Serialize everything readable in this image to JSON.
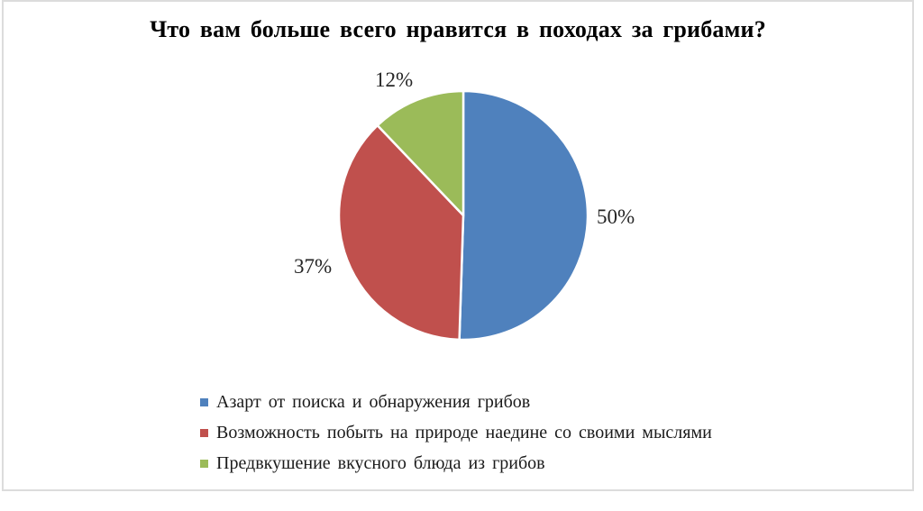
{
  "page": {
    "background_color": "#FFFFFF",
    "frame_border_color": "#DCDCDC"
  },
  "chart_data": {
    "type": "pie",
    "title": "Что вам больше всего нравится в походах за грибами?",
    "legend_position": "bottom-left",
    "start_angle_deg": 0,
    "direction": "clockwise",
    "data_label_style": "percent, outside end",
    "slices": [
      {
        "key": "search-excitement",
        "label": "Азарт от поиска и обнаружения грибов",
        "value": 50,
        "display": "50%",
        "color": "#4F81BD"
      },
      {
        "key": "nature-solitude",
        "label": "Возможность побыть на природе наедине со своими мыслями",
        "value": 37,
        "display": "37%",
        "color": "#C0504D"
      },
      {
        "key": "tasty-dish",
        "label": "Предвкушение вкусного блюда из грибов",
        "value": 12,
        "display": "12%",
        "color": "#9BBB59"
      }
    ]
  }
}
